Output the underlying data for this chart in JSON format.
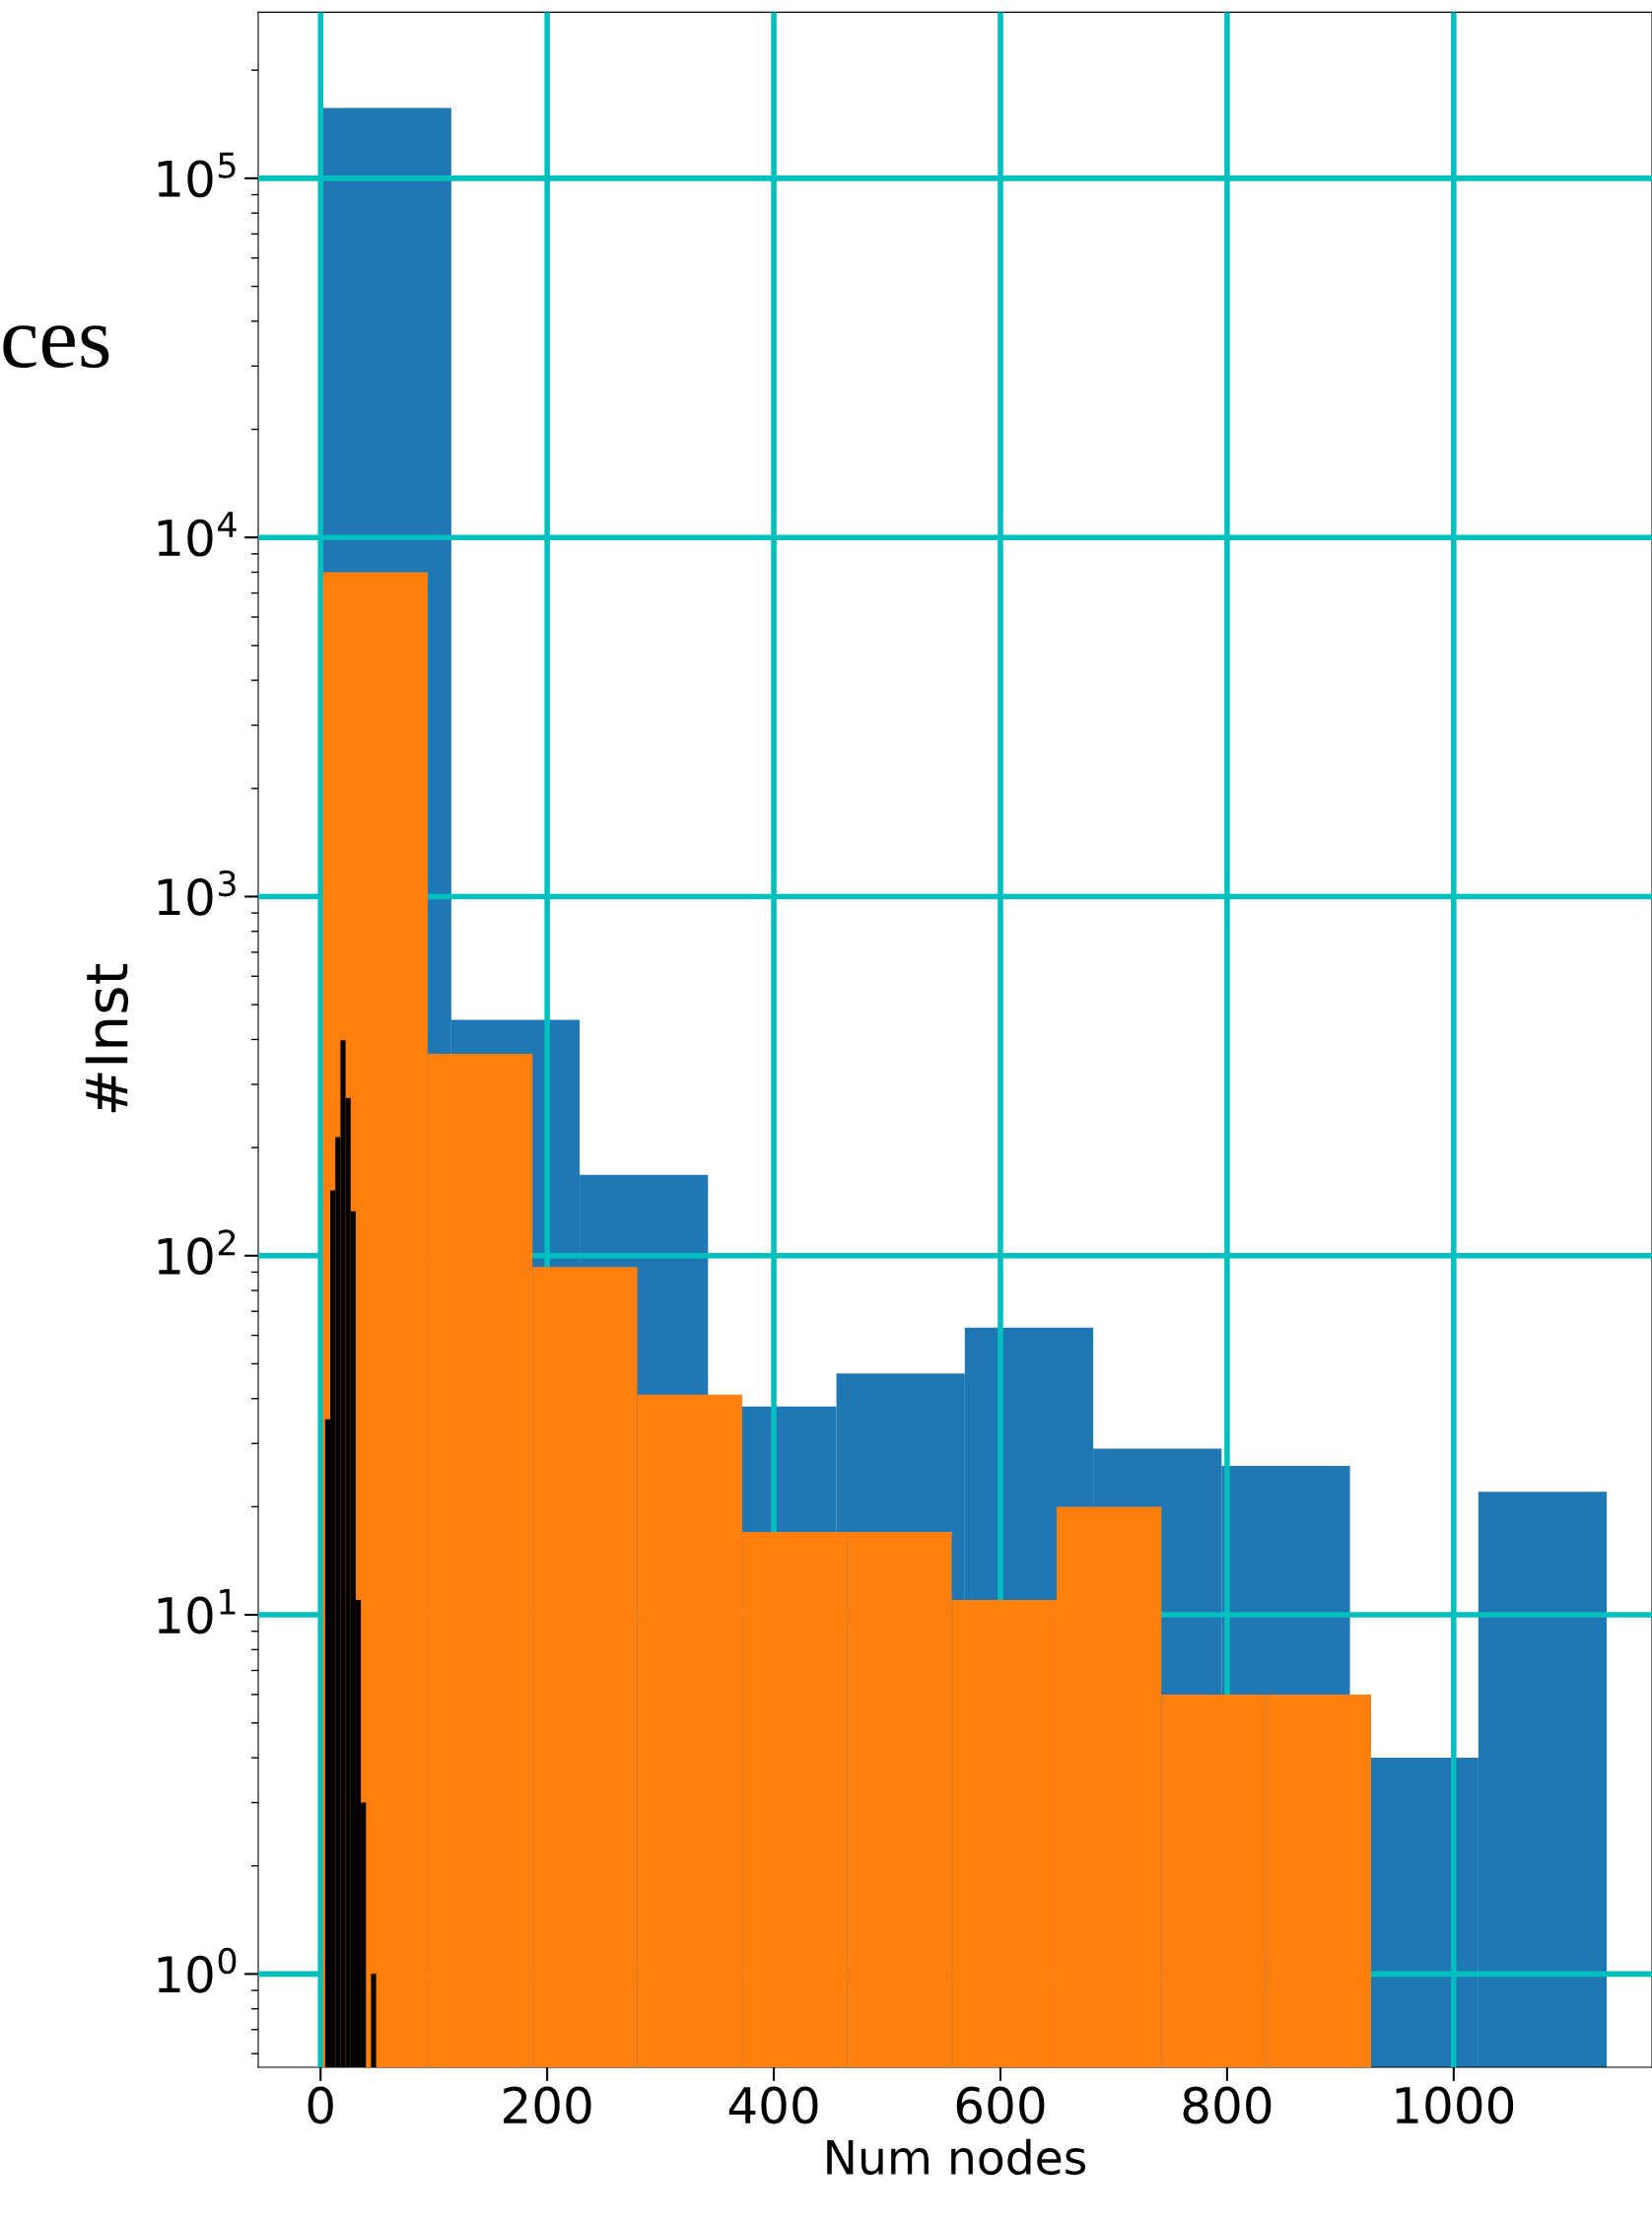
{
  "chart_data": {
    "type": "bar",
    "xlabel": "Num nodes",
    "ylabel": "#Inst",
    "log": "y",
    "grid": true,
    "xlim": [
      -55,
      1175
    ],
    "xticks": [
      0,
      200,
      400,
      600,
      800,
      1000
    ],
    "ylim": [
      0.55,
      290000
    ],
    "yticks": [
      {
        "value": 1,
        "label": "10$^{0}$"
      },
      {
        "value": 10,
        "label": "10$^{1}$"
      },
      {
        "value": 100,
        "label": "10$^{2}$"
      },
      {
        "value": 1000,
        "label": "10$^{3}$"
      },
      {
        "value": 10000,
        "label": "10$^{4}$"
      },
      {
        "value": 100000,
        "label": "10$^{5}$"
      }
    ],
    "annotations": [
      "ces"
    ],
    "series": [
      {
        "color": "#1f77b4",
        "x": [
          58.7,
          172,
          285.3,
          398.6,
          511.9,
          625.2,
          738.5,
          851.8,
          965.1,
          1078.4
        ],
        "values": [
          157000,
          454,
          168,
          38,
          47,
          63,
          29,
          26,
          4,
          22
        ]
      },
      {
        "color": "#ff7f0e",
        "x": [
          48.3,
          140.8,
          233.3,
          325.8,
          418.3,
          510.8,
          603.3,
          695.8,
          788.3,
          880.8
        ],
        "values": [
          8000,
          365,
          93,
          41,
          17,
          17,
          11,
          20,
          6,
          6
        ]
      },
      {
        "color": "#000000",
        "x": [
          6.3,
          10.8,
          15.3,
          19.8,
          24.3,
          28.8,
          33.3,
          37.8,
          42.3,
          46.8
        ],
        "values": [
          35,
          152,
          214,
          398,
          275,
          133,
          11,
          3,
          null,
          1
        ]
      }
    ]
  }
}
